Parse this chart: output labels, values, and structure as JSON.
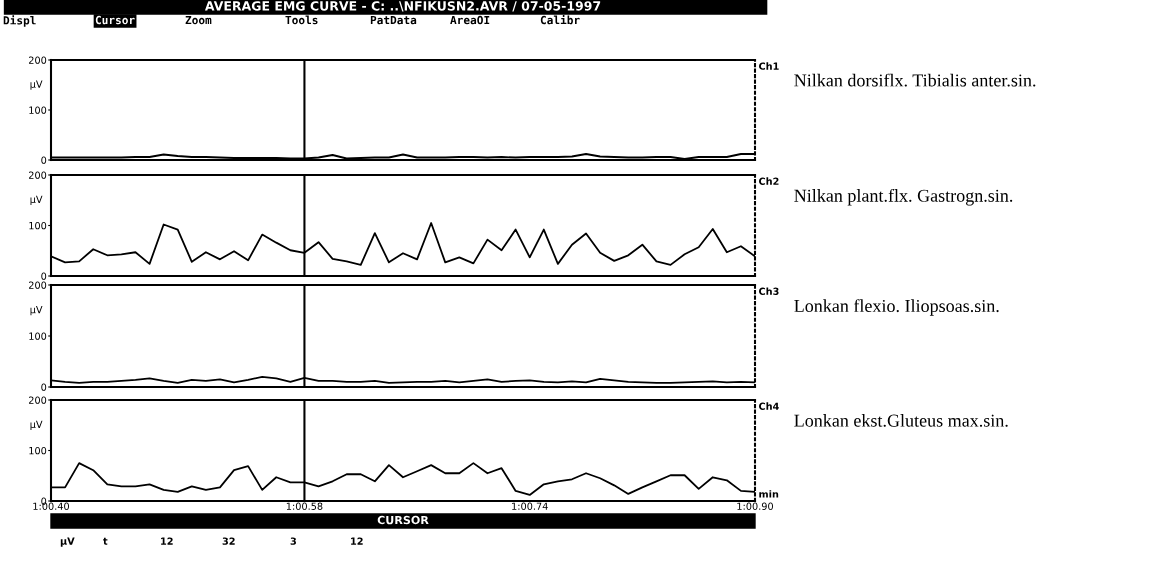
{
  "chart_data": [
    {
      "type": "line",
      "title": "AVERAGE EMG CURVE - C: ..\\NFIKUSN2.AVR / 07-05-1997",
      "ylabel": "µV",
      "annotations": [
        "Nilkan dorsiflx. Tibialis anter.sin.",
        "Displ",
        "Cursor",
        "Zoom",
        "Tools",
        "PatData",
        "AreaOI",
        "Calibr"
      ],
      "categories": [
        "1:00.40",
        null,
        null,
        null,
        null,
        null,
        null,
        null,
        null,
        null,
        null,
        null,
        null,
        null,
        null,
        null,
        null,
        null,
        "1:00.58",
        null,
        null,
        null,
        null,
        null,
        null,
        null,
        null,
        null,
        null,
        null,
        null,
        null,
        null,
        null,
        "1:00.74",
        null,
        null,
        null,
        null,
        null,
        null,
        null,
        null,
        null,
        null,
        null,
        null,
        null,
        null,
        null,
        "1:00.90"
      ],
      "series": [
        {
          "name": "Ch1",
          "color": "#000000",
          "values": [
            5,
            5,
            5,
            5,
            5,
            5,
            6,
            6,
            11,
            8,
            6,
            6,
            5,
            4,
            4,
            4,
            4,
            3,
            3,
            5,
            10,
            3,
            4,
            5,
            5,
            11,
            5,
            5,
            5,
            6,
            6,
            5,
            6,
            5,
            6,
            6,
            6,
            7,
            12,
            7,
            6,
            5,
            5,
            6,
            6,
            2,
            6,
            6,
            6,
            12,
            12
          ]
        }
      ],
      "ylim": [
        0,
        200
      ],
      "yticks": [
        0,
        100,
        200
      ],
      "tick_labels": "y",
      "ref_lines": [
        {
          "axis": "x",
          "value": "1:00.58"
        }
      ]
    },
    {
      "type": "line",
      "ylabel": "µV",
      "annotations": [
        "Nilkan plant.flx. Gastrogn.sin."
      ],
      "categories": [
        "1:00.40",
        null,
        null,
        null,
        null,
        null,
        null,
        null,
        null,
        null,
        null,
        null,
        null,
        null,
        null,
        null,
        null,
        null,
        "1:00.58",
        null,
        null,
        null,
        null,
        null,
        null,
        null,
        null,
        null,
        null,
        null,
        null,
        null,
        null,
        null,
        "1:00.74",
        null,
        null,
        null,
        null,
        null,
        null,
        null,
        null,
        null,
        null,
        null,
        null,
        null,
        null,
        null,
        "1:00.90"
      ],
      "series": [
        {
          "name": "Ch2",
          "color": "#000000",
          "values": [
            39,
            27,
            29,
            53,
            41,
            43,
            47,
            24,
            102,
            92,
            28,
            47,
            33,
            49,
            31,
            82,
            66,
            51,
            46,
            67,
            34,
            29,
            22,
            85,
            27,
            45,
            33,
            105,
            27,
            37,
            25,
            72,
            51,
            92,
            37,
            92,
            24,
            62,
            84,
            46,
            30,
            41,
            62,
            29,
            22,
            43,
            57,
            93,
            47,
            59,
            39
          ]
        }
      ],
      "ylim": [
        0,
        200
      ],
      "yticks": [
        0,
        100,
        200
      ],
      "tick_labels": "y",
      "ref_lines": [
        {
          "axis": "x",
          "value": "1:00.58"
        }
      ]
    },
    {
      "type": "line",
      "ylabel": "µV",
      "annotations": [
        "Lonkan flexio. Iliopsoas.sin."
      ],
      "categories": [
        "1:00.40",
        null,
        null,
        null,
        null,
        null,
        null,
        null,
        null,
        null,
        null,
        null,
        null,
        null,
        null,
        null,
        null,
        null,
        "1:00.58",
        null,
        null,
        null,
        null,
        null,
        null,
        null,
        null,
        null,
        null,
        null,
        null,
        null,
        null,
        null,
        "1:00.74",
        null,
        null,
        null,
        null,
        null,
        null,
        null,
        null,
        null,
        null,
        null,
        null,
        null,
        null,
        null,
        "1:00.90"
      ],
      "series": [
        {
          "name": "Ch3",
          "color": "#000000",
          "values": [
            13,
            10,
            8,
            10,
            10,
            12,
            14,
            17,
            12,
            8,
            14,
            12,
            15,
            9,
            14,
            20,
            17,
            10,
            18,
            12,
            12,
            10,
            10,
            12,
            8,
            9,
            10,
            10,
            12,
            9,
            12,
            15,
            10,
            12,
            13,
            10,
            9,
            11,
            9,
            16,
            13,
            10,
            9,
            8,
            8,
            9,
            10,
            11,
            9,
            10,
            9
          ]
        }
      ],
      "ylim": [
        0,
        200
      ],
      "yticks": [
        0,
        100,
        200
      ],
      "tick_labels": "y",
      "ref_lines": [
        {
          "axis": "x",
          "value": "1:00.58"
        }
      ]
    },
    {
      "type": "line",
      "ylabel": "µV",
      "annotations": [
        "Lonkan ekst.Gluteus max.sin.",
        "min",
        "CURSOR",
        "µV",
        "t",
        "12",
        "32",
        "3",
        "12"
      ],
      "categories": [
        "1:00.40",
        null,
        null,
        null,
        null,
        null,
        null,
        null,
        null,
        null,
        null,
        null,
        null,
        null,
        null,
        null,
        null,
        null,
        "1:00.58",
        null,
        null,
        null,
        null,
        null,
        null,
        null,
        null,
        null,
        null,
        null,
        null,
        null,
        null,
        null,
        "1:00.74",
        null,
        null,
        null,
        null,
        null,
        null,
        null,
        null,
        null,
        null,
        null,
        null,
        null,
        null,
        null,
        "1:00.90"
      ],
      "series": [
        {
          "name": "Ch4",
          "color": "#000000",
          "values": [
            27,
            27,
            75,
            61,
            33,
            29,
            29,
            33,
            22,
            18,
            29,
            22,
            27,
            61,
            69,
            22,
            47,
            37,
            37,
            29,
            39,
            53,
            53,
            39,
            71,
            47,
            59,
            71,
            55,
            55,
            75,
            55,
            65,
            20,
            12,
            33,
            39,
            43,
            55,
            45,
            31,
            14,
            27,
            39,
            51,
            51,
            24,
            47,
            41,
            20,
            18
          ]
        }
      ],
      "ylim": [
        0,
        200
      ],
      "yticks": [
        0,
        100,
        200
      ],
      "ref_lines": [
        {
          "axis": "x",
          "value": "1:00.58"
        }
      ]
    }
  ]
}
